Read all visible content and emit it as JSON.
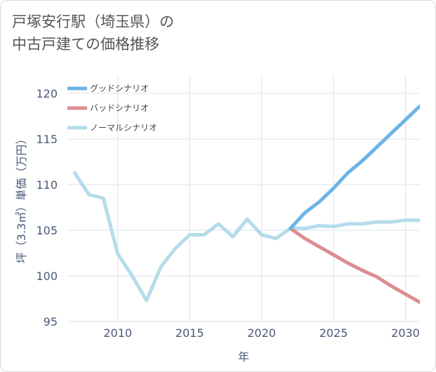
{
  "title": {
    "line1": "戸塚安行駅（埼玉県）の",
    "line2": "中古戸建ての価格推移"
  },
  "chart_data": {
    "type": "line",
    "title": "戸塚安行駅（埼玉県）の中古戸建ての価格推移",
    "xlabel": "年",
    "ylabel": "坪（3.3㎡）単価（万円）",
    "xlim": [
      2006.5,
      2031
    ],
    "ylim": [
      95,
      122
    ],
    "xticks": [
      2010,
      2015,
      2020,
      2025,
      2030
    ],
    "yticks": [
      95,
      100,
      105,
      110,
      115,
      120
    ],
    "legend_position": "top-left",
    "series": [
      {
        "name": "グッドシナリオ",
        "color": "#6cb4e8",
        "x": [
          2022,
          2023,
          2024,
          2025,
          2026,
          2027,
          2028,
          2029,
          2030,
          2031
        ],
        "values": [
          105.2,
          106.9,
          108.1,
          109.6,
          111.3,
          112.6,
          114.1,
          115.6,
          117.1,
          118.6
        ]
      },
      {
        "name": "バッドシナリオ",
        "color": "#de8c93",
        "x": [
          2022,
          2023,
          2024,
          2025,
          2026,
          2027,
          2028,
          2029,
          2030,
          2031
        ],
        "values": [
          105.2,
          104.1,
          103.2,
          102.3,
          101.4,
          100.6,
          99.9,
          98.9,
          98.0,
          97.1
        ]
      },
      {
        "name": "ノーマルシナリオ",
        "color": "#b5dcea",
        "x": [
          2007,
          2008,
          2009,
          2010,
          2011,
          2012,
          2013,
          2014,
          2015,
          2016,
          2017,
          2018,
          2019,
          2020,
          2021,
          2022,
          2023,
          2024,
          2025,
          2026,
          2027,
          2028,
          2029,
          2030,
          2031
        ],
        "values": [
          111.3,
          108.9,
          108.5,
          102.4,
          100.0,
          97.3,
          101.0,
          103.0,
          104.5,
          104.5,
          105.7,
          104.3,
          106.2,
          104.5,
          104.1,
          105.2,
          105.2,
          105.5,
          105.4,
          105.7,
          105.7,
          105.9,
          105.9,
          106.1,
          106.1
        ]
      }
    ]
  }
}
